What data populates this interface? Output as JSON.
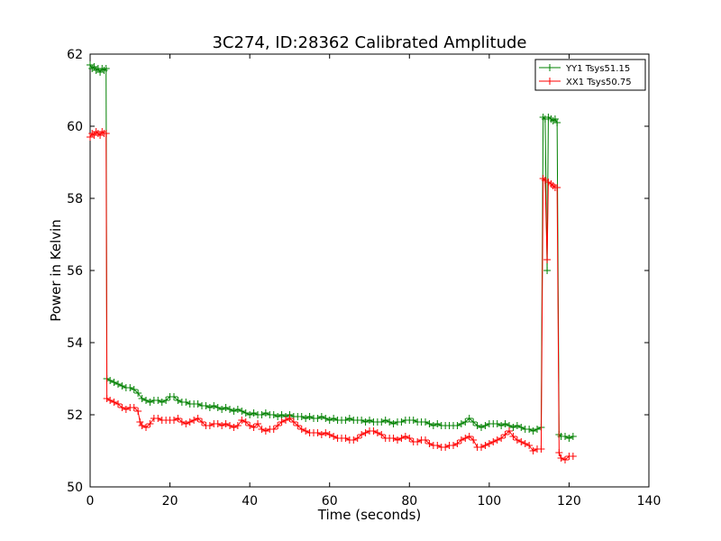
{
  "chart_data": {
    "type": "line",
    "title": "3C274, ID:28362 Calibrated Amplitude",
    "xlabel": "Time (seconds)",
    "ylabel": "Power in Kelvin",
    "xlim": [
      0,
      140
    ],
    "ylim": [
      50,
      62
    ],
    "xticks": [
      0,
      20,
      40,
      60,
      80,
      100,
      120,
      140
    ],
    "yticks": [
      50,
      52,
      54,
      56,
      58,
      60,
      62
    ],
    "grid": false,
    "legend_position": "top-right",
    "marker": "+",
    "series": [
      {
        "name": "YY1 Tsys51.15",
        "color": "#008000",
        "points": [
          [
            0,
            61.7
          ],
          [
            0.5,
            61.6
          ],
          [
            1,
            61.65
          ],
          [
            1.5,
            61.55
          ],
          [
            2,
            61.6
          ],
          [
            2.5,
            61.5
          ],
          [
            3,
            61.6
          ],
          [
            3.5,
            61.55
          ],
          [
            4,
            61.6
          ],
          [
            4.2,
            53.0
          ],
          [
            5,
            52.95
          ],
          [
            6,
            52.9
          ],
          [
            7,
            52.85
          ],
          [
            8,
            52.8
          ],
          [
            9,
            52.75
          ],
          [
            10,
            52.75
          ],
          [
            11,
            52.7
          ],
          [
            12,
            52.6
          ],
          [
            13,
            52.45
          ],
          [
            14,
            52.4
          ],
          [
            15,
            52.35
          ],
          [
            16,
            52.4
          ],
          [
            17,
            52.4
          ],
          [
            18,
            52.35
          ],
          [
            19,
            52.4
          ],
          [
            20,
            52.5
          ],
          [
            21,
            52.5
          ],
          [
            22,
            52.4
          ],
          [
            23,
            52.35
          ],
          [
            24,
            52.35
          ],
          [
            25,
            52.3
          ],
          [
            26,
            52.3
          ],
          [
            27,
            52.3
          ],
          [
            28,
            52.25
          ],
          [
            29,
            52.25
          ],
          [
            30,
            52.2
          ],
          [
            31,
            52.25
          ],
          [
            32,
            52.2
          ],
          [
            33,
            52.15
          ],
          [
            34,
            52.2
          ],
          [
            35,
            52.15
          ],
          [
            36,
            52.1
          ],
          [
            37,
            52.15
          ],
          [
            38,
            52.1
          ],
          [
            39,
            52.05
          ],
          [
            40,
            52.0
          ],
          [
            41,
            52.05
          ],
          [
            42,
            52.0
          ],
          [
            43,
            52.0
          ],
          [
            44,
            52.05
          ],
          [
            45,
            52.0
          ],
          [
            46,
            52.0
          ],
          [
            47,
            51.95
          ],
          [
            48,
            52.0
          ],
          [
            49,
            51.95
          ],
          [
            50,
            52.0
          ],
          [
            51,
            51.95
          ],
          [
            52,
            51.95
          ],
          [
            53,
            51.95
          ],
          [
            54,
            51.9
          ],
          [
            55,
            51.95
          ],
          [
            56,
            51.9
          ],
          [
            57,
            51.9
          ],
          [
            58,
            51.95
          ],
          [
            59,
            51.9
          ],
          [
            60,
            51.85
          ],
          [
            61,
            51.9
          ],
          [
            62,
            51.85
          ],
          [
            63,
            51.85
          ],
          [
            64,
            51.85
          ],
          [
            65,
            51.9
          ],
          [
            66,
            51.85
          ],
          [
            67,
            51.85
          ],
          [
            68,
            51.85
          ],
          [
            69,
            51.8
          ],
          [
            70,
            51.85
          ],
          [
            71,
            51.8
          ],
          [
            72,
            51.8
          ],
          [
            73,
            51.8
          ],
          [
            74,
            51.85
          ],
          [
            75,
            51.8
          ],
          [
            76,
            51.75
          ],
          [
            77,
            51.8
          ],
          [
            78,
            51.8
          ],
          [
            79,
            51.85
          ],
          [
            80,
            51.85
          ],
          [
            81,
            51.85
          ],
          [
            82,
            51.8
          ],
          [
            83,
            51.8
          ],
          [
            84,
            51.8
          ],
          [
            85,
            51.75
          ],
          [
            86,
            51.7
          ],
          [
            87,
            51.75
          ],
          [
            88,
            51.7
          ],
          [
            89,
            51.7
          ],
          [
            90,
            51.7
          ],
          [
            91,
            51.7
          ],
          [
            92,
            51.7
          ],
          [
            93,
            51.75
          ],
          [
            94,
            51.8
          ],
          [
            95,
            51.9
          ],
          [
            96,
            51.8
          ],
          [
            97,
            51.7
          ],
          [
            98,
            51.65
          ],
          [
            99,
            51.7
          ],
          [
            100,
            51.75
          ],
          [
            101,
            51.75
          ],
          [
            102,
            51.75
          ],
          [
            103,
            51.7
          ],
          [
            104,
            51.75
          ],
          [
            105,
            51.7
          ],
          [
            106,
            51.65
          ],
          [
            107,
            51.7
          ],
          [
            108,
            51.65
          ],
          [
            109,
            51.6
          ],
          [
            110,
            51.6
          ],
          [
            111,
            51.55
          ],
          [
            112,
            51.6
          ],
          [
            113,
            51.65
          ],
          [
            113.5,
            60.25
          ],
          [
            114,
            60.2
          ],
          [
            114.5,
            56.0
          ],
          [
            114.8,
            60.25
          ],
          [
            115.5,
            60.2
          ],
          [
            116,
            60.15
          ],
          [
            116.5,
            60.2
          ],
          [
            117,
            60.1
          ],
          [
            117.5,
            51.45
          ],
          [
            118,
            51.4
          ],
          [
            119,
            51.4
          ],
          [
            120,
            51.35
          ],
          [
            121,
            51.4
          ]
        ]
      },
      {
        "name": "XX1 Tsys50.75",
        "color": "#ff0000",
        "points": [
          [
            0,
            59.7
          ],
          [
            0.5,
            59.8
          ],
          [
            1,
            59.75
          ],
          [
            1.5,
            59.85
          ],
          [
            2,
            59.8
          ],
          [
            2.5,
            59.75
          ],
          [
            3,
            59.85
          ],
          [
            3.5,
            59.8
          ],
          [
            4,
            59.8
          ],
          [
            4.2,
            52.45
          ],
          [
            5,
            52.4
          ],
          [
            6,
            52.35
          ],
          [
            7,
            52.3
          ],
          [
            8,
            52.2
          ],
          [
            9,
            52.15
          ],
          [
            10,
            52.2
          ],
          [
            11,
            52.2
          ],
          [
            12,
            52.1
          ],
          [
            12.5,
            51.8
          ],
          [
            13,
            51.7
          ],
          [
            14,
            51.65
          ],
          [
            15,
            51.75
          ],
          [
            16,
            51.9
          ],
          [
            17,
            51.9
          ],
          [
            18,
            51.85
          ],
          [
            19,
            51.85
          ],
          [
            20,
            51.85
          ],
          [
            21,
            51.85
          ],
          [
            22,
            51.9
          ],
          [
            23,
            51.8
          ],
          [
            24,
            51.75
          ],
          [
            25,
            51.8
          ],
          [
            26,
            51.85
          ],
          [
            27,
            51.9
          ],
          [
            28,
            51.8
          ],
          [
            29,
            51.7
          ],
          [
            30,
            51.7
          ],
          [
            31,
            51.75
          ],
          [
            32,
            51.75
          ],
          [
            33,
            51.7
          ],
          [
            34,
            51.75
          ],
          [
            35,
            51.7
          ],
          [
            36,
            51.65
          ],
          [
            37,
            51.7
          ],
          [
            38,
            51.85
          ],
          [
            39,
            51.8
          ],
          [
            40,
            51.7
          ],
          [
            41,
            51.65
          ],
          [
            42,
            51.75
          ],
          [
            43,
            51.6
          ],
          [
            44,
            51.55
          ],
          [
            45,
            51.6
          ],
          [
            46,
            51.6
          ],
          [
            47,
            51.7
          ],
          [
            48,
            51.8
          ],
          [
            49,
            51.85
          ],
          [
            50,
            51.9
          ],
          [
            51,
            51.8
          ],
          [
            52,
            51.7
          ],
          [
            53,
            51.6
          ],
          [
            54,
            51.55
          ],
          [
            55,
            51.5
          ],
          [
            56,
            51.5
          ],
          [
            57,
            51.5
          ],
          [
            58,
            51.45
          ],
          [
            59,
            51.5
          ],
          [
            60,
            51.45
          ],
          [
            61,
            51.4
          ],
          [
            62,
            51.35
          ],
          [
            63,
            51.35
          ],
          [
            64,
            51.35
          ],
          [
            65,
            51.3
          ],
          [
            66,
            51.3
          ],
          [
            67,
            51.35
          ],
          [
            68,
            51.45
          ],
          [
            69,
            51.5
          ],
          [
            70,
            51.55
          ],
          [
            71,
            51.55
          ],
          [
            72,
            51.5
          ],
          [
            73,
            51.45
          ],
          [
            74,
            51.35
          ],
          [
            75,
            51.35
          ],
          [
            76,
            51.35
          ],
          [
            77,
            51.3
          ],
          [
            78,
            51.35
          ],
          [
            79,
            51.4
          ],
          [
            80,
            51.35
          ],
          [
            81,
            51.25
          ],
          [
            82,
            51.25
          ],
          [
            83,
            51.3
          ],
          [
            84,
            51.3
          ],
          [
            85,
            51.2
          ],
          [
            86,
            51.15
          ],
          [
            87,
            51.15
          ],
          [
            88,
            51.1
          ],
          [
            89,
            51.1
          ],
          [
            90,
            51.15
          ],
          [
            91,
            51.15
          ],
          [
            92,
            51.2
          ],
          [
            93,
            51.3
          ],
          [
            94,
            51.35
          ],
          [
            95,
            51.4
          ],
          [
            96,
            51.3
          ],
          [
            97,
            51.1
          ],
          [
            98,
            51.1
          ],
          [
            99,
            51.15
          ],
          [
            100,
            51.2
          ],
          [
            101,
            51.25
          ],
          [
            102,
            51.3
          ],
          [
            103,
            51.35
          ],
          [
            104,
            51.45
          ],
          [
            105,
            51.55
          ],
          [
            106,
            51.4
          ],
          [
            107,
            51.3
          ],
          [
            108,
            51.25
          ],
          [
            109,
            51.2
          ],
          [
            110,
            51.15
          ],
          [
            111,
            51.0
          ],
          [
            112,
            51.05
          ],
          [
            113,
            51.05
          ],
          [
            113.5,
            58.55
          ],
          [
            114,
            58.5
          ],
          [
            114.5,
            56.3
          ],
          [
            114.8,
            58.45
          ],
          [
            115.5,
            58.4
          ],
          [
            116,
            58.35
          ],
          [
            116.5,
            58.3
          ],
          [
            117,
            58.3
          ],
          [
            117.5,
            50.95
          ],
          [
            118,
            50.8
          ],
          [
            119,
            50.75
          ],
          [
            120,
            50.85
          ],
          [
            121,
            50.85
          ]
        ]
      }
    ]
  }
}
